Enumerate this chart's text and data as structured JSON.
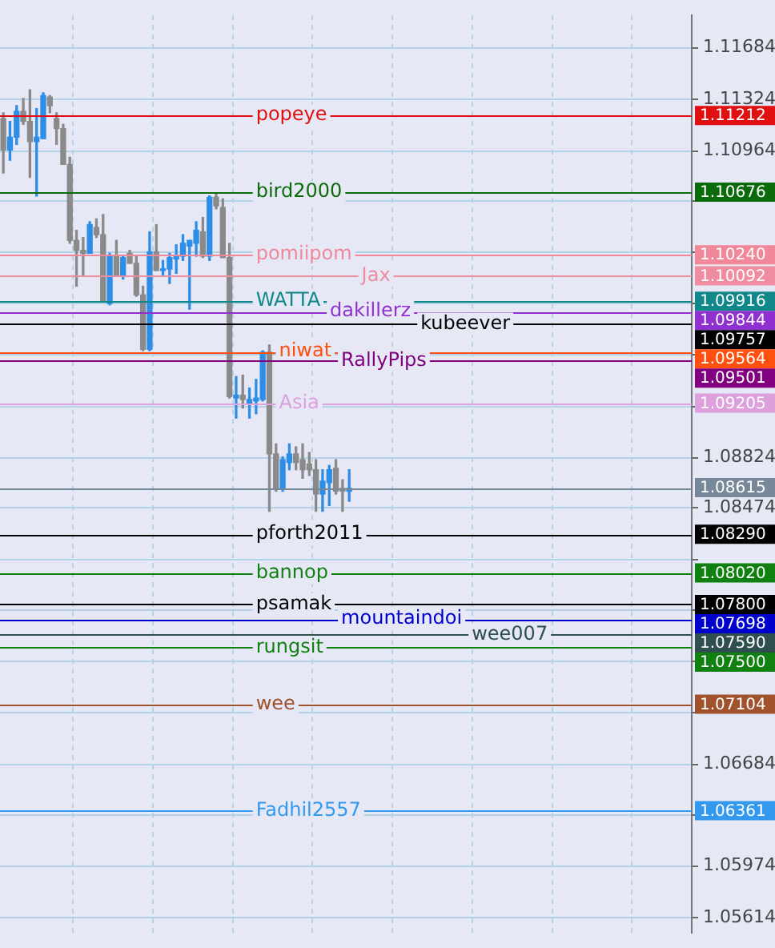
{
  "chart_data": {
    "type": "candlestick",
    "categories": [
      null,
      null,
      null,
      null,
      null,
      null,
      null,
      null,
      null,
      null,
      null,
      null,
      null,
      null,
      null,
      null,
      null,
      null,
      null,
      null,
      null,
      null,
      null,
      null,
      null,
      null,
      null,
      null,
      null,
      null,
      null,
      null,
      null,
      null,
      null,
      null,
      null,
      null,
      null,
      null,
      null,
      null,
      null,
      null,
      null,
      null,
      null,
      null,
      null,
      null,
      null,
      null,
      null,
      null,
      null,
      null,
      null,
      null,
      null,
      null,
      null,
      null,
      null,
      null,
      null,
      null,
      null,
      null,
      null,
      null,
      null,
      null,
      null,
      null,
      null,
      null,
      null,
      null,
      null,
      null,
      null,
      null,
      null,
      null,
      null,
      null,
      null,
      null,
      null,
      null,
      null,
      null,
      null,
      null,
      null,
      null,
      null,
      null,
      null,
      null,
      null,
      null,
      null,
      null
    ],
    "ohlc": [
      [
        1.1119,
        1.1123,
        1.1081,
        1.1097
      ],
      [
        1.1097,
        1.1117,
        1.109,
        1.1106
      ],
      [
        1.1106,
        1.1128,
        1.1101,
        1.1124
      ],
      [
        1.1124,
        1.1133,
        1.1115,
        1.1117
      ],
      [
        1.1117,
        1.1139,
        1.1078,
        1.1103
      ],
      [
        1.1103,
        1.1126,
        1.1065,
        1.1106
      ],
      [
        1.1105,
        1.1137,
        1.1105,
        1.1135
      ],
      [
        1.1134,
        1.1135,
        1.1123,
        1.1128
      ],
      [
        1.1119,
        1.1123,
        1.1101,
        1.1112
      ],
      [
        1.1112,
        1.1115,
        1.1087,
        1.1087
      ],
      [
        1.1087,
        1.1092,
        1.1032,
        1.1034
      ],
      [
        1.1034,
        1.1041,
        1.1002,
        1.1027
      ],
      [
        1.1027,
        1.1036,
        1.1009,
        1.1025
      ],
      [
        1.1025,
        1.1047,
        1.1025,
        1.1045
      ],
      [
        1.1043,
        1.1049,
        1.1036,
        1.1038
      ],
      [
        1.1038,
        1.1052,
        1.0991,
        1.0992
      ],
      [
        1.099,
        1.1025,
        1.0989,
        1.1023
      ],
      [
        1.1023,
        1.1034,
        1.1009,
        1.1009
      ],
      [
        1.1009,
        1.1023,
        1.1007,
        1.1022
      ],
      [
        1.1025,
        1.1027,
        1.1018,
        1.1018
      ],
      [
        1.1018,
        1.1023,
        1.0995,
        1.0996
      ],
      [
        1.0996,
        1.1002,
        1.0957,
        1.0958
      ],
      [
        1.0958,
        1.104,
        1.0957,
        1.1026
      ],
      [
        1.1026,
        1.1045,
        1.1013,
        1.1013
      ],
      [
        1.1013,
        1.102,
        1.1009,
        1.1014
      ],
      [
        1.1014,
        1.1025,
        1.1004,
        1.1022
      ],
      [
        1.1021,
        1.1031,
        1.1011,
        1.1023
      ],
      [
        1.1023,
        1.1038,
        1.102,
        1.1032
      ],
      [
        1.103,
        1.1034,
        1.0986,
        1.1034
      ],
      [
        1.1032,
        1.1047,
        1.1023,
        1.1041
      ],
      [
        1.104,
        1.105,
        1.1022,
        1.1023
      ],
      [
        1.1023,
        1.1065,
        1.102,
        1.1064
      ],
      [
        1.1064,
        1.1067,
        1.1056,
        1.1058
      ],
      [
        1.1057,
        1.1063,
        1.1022,
        1.1022
      ],
      [
        1.1022,
        1.1032,
        1.0924,
        1.0925
      ],
      [
        1.0924,
        1.0939,
        1.091,
        1.0926
      ],
      [
        1.0926,
        1.094,
        1.0917,
        1.0923
      ],
      [
        1.092,
        1.0931,
        1.091,
        1.0923
      ],
      [
        1.0922,
        1.0937,
        1.0913,
        1.0924
      ],
      [
        1.0923,
        1.0957,
        1.0922,
        1.0956
      ],
      [
        1.0956,
        1.0961,
        1.0845,
        1.0885
      ],
      [
        1.0885,
        1.0892,
        1.0859,
        1.0861
      ],
      [
        1.0861,
        1.0883,
        1.0859,
        1.0881
      ],
      [
        1.0879,
        1.0892,
        1.0874,
        1.0885
      ],
      [
        1.0885,
        1.089,
        1.0874,
        1.0879
      ],
      [
        1.0881,
        1.0892,
        1.0868,
        1.0874
      ],
      [
        1.0878,
        1.0886,
        1.087,
        1.0874
      ],
      [
        1.0874,
        1.0881,
        1.0845,
        1.0857
      ],
      [
        1.0857,
        1.0874,
        1.0845,
        1.0866
      ],
      [
        1.0865,
        1.0877,
        1.0849,
        1.0874
      ],
      [
        1.0875,
        1.0881,
        1.0857,
        1.0859
      ],
      [
        1.0861,
        1.0867,
        1.0845,
        1.0859
      ],
      [
        1.0859,
        1.0874,
        1.0852,
        1.0861
      ],
      null,
      null,
      null,
      null,
      null,
      null,
      null,
      null,
      null,
      null,
      null,
      null,
      null,
      null,
      null,
      null,
      null,
      null,
      null,
      null,
      null,
      null,
      null,
      null,
      null,
      null,
      null,
      null,
      null,
      null,
      null,
      null,
      null,
      null,
      null,
      null,
      null,
      null,
      null,
      null,
      null,
      null,
      null,
      null,
      null,
      null,
      null,
      null,
      null,
      null,
      null
    ],
    "colors": [
      "#8a8a8a",
      "#2e8de6",
      "#2e8de6",
      "#8a8a8a",
      "#8a8a8a",
      "#2e8de6",
      "#2e8de6",
      "#8a8a8a",
      "#8a8a8a",
      "#8a8a8a",
      "#8a8a8a",
      "#8a8a8a",
      "#8a8a8a",
      "#2e8de6",
      "#8a8a8a",
      "#8a8a8a",
      "#2e8de6",
      "#8a8a8a",
      "#2e8de6",
      "#8a8a8a",
      "#8a8a8a",
      "#8a8a8a",
      "#2e8de6",
      "#8a8a8a",
      "#2e8de6",
      "#2e8de6",
      "#2e8de6",
      "#2e8de6",
      "#2e8de6",
      "#2e8de6",
      "#8a8a8a",
      "#2e8de6",
      "#8a8a8a",
      "#8a8a8a",
      "#8a8a8a",
      "#2e8de6",
      "#8a8a8a",
      "#2e8de6",
      "#2e8de6",
      "#2e8de6",
      "#8a8a8a",
      "#8a8a8a",
      "#2e8de6",
      "#2e8de6",
      "#8a8a8a",
      "#8a8a8a",
      "#8a8a8a",
      "#8a8a8a",
      "#2e8de6",
      "#2e8de6",
      "#8a8a8a",
      "#8a8a8a",
      "#2e8de6",
      null,
      null,
      null,
      null,
      null,
      null,
      null,
      null,
      null,
      null,
      null,
      null,
      null,
      null,
      null,
      null,
      null,
      null,
      null,
      null,
      null,
      null,
      null,
      null,
      null,
      null,
      null,
      null,
      null,
      null,
      null,
      null,
      null,
      null,
      null,
      null,
      null,
      null,
      null,
      null,
      null,
      null,
      null,
      null,
      null,
      null,
      null,
      null,
      null,
      null,
      null
    ],
    "ylim": [
      1.0551,
      1.1191
    ],
    "yticks": [
      1.11684,
      1.11324,
      1.10964,
      {
        "value": 1.10614,
        "label": null
      },
      {
        "value": 1.1026,
        "label": null
      },
      {
        "value": 1.099,
        "label": null
      },
      {
        "value": 1.0954,
        "label": null
      },
      {
        "value": 1.0918,
        "label": null
      },
      1.08824,
      1.08474,
      {
        "value": 1.08114,
        "label": null
      },
      {
        "value": 1.0776,
        "label": null
      },
      {
        "value": 1.07404,
        "label": null
      },
      {
        "value": 1.07044,
        "label": null
      },
      1.06684,
      {
        "value": 1.0633,
        "label": null
      },
      1.05974,
      1.05614
    ],
    "tick_labels": "y",
    "grid": true,
    "ref_lines": [
      {
        "axis": "y",
        "value": 1.11212,
        "label": "popeye",
        "color": "#e01010"
      },
      {
        "axis": "y",
        "value": 1.10676,
        "label": "bird2000",
        "color": "#0a6b0a"
      },
      {
        "axis": "y",
        "value": 1.1024,
        "label": "pomiipom",
        "color": "#f0889a"
      },
      {
        "axis": "y",
        "value": 1.10092,
        "label": "Jax",
        "color": "#f08ca0"
      },
      {
        "axis": "y",
        "value": 1.09916,
        "label": "WATTA",
        "color": "#10888a"
      },
      {
        "axis": "y",
        "value": 1.09844,
        "label": "dakillerz",
        "color": "#9030d0"
      },
      {
        "axis": "y",
        "value": 1.09757,
        "label": "kubeever",
        "color": "#000000"
      },
      {
        "axis": "y",
        "value": 1.09564,
        "label": "niwat",
        "color": "#ff5010"
      },
      {
        "axis": "y",
        "value": 1.09501,
        "label": "RallyPips",
        "color": "#800080"
      },
      {
        "axis": "y",
        "value": 1.09205,
        "label": "Asia",
        "color": "#dda0dd"
      },
      {
        "axis": "y",
        "value": 1.08615,
        "color": "#778899"
      },
      {
        "axis": "y",
        "value": 1.0829,
        "label": "pforth2011",
        "color": "#000000"
      },
      {
        "axis": "y",
        "value": 1.0802,
        "label": "bannop",
        "color": "#108010"
      },
      {
        "axis": "y",
        "value": 1.078,
        "label": "psamak",
        "color": "#000000"
      },
      {
        "axis": "y",
        "value": 1.07698,
        "label": "mountaindoi",
        "color": "#0000cc"
      },
      {
        "axis": "y",
        "value": 1.0759,
        "label": "wee007",
        "color": "#2f4f4f"
      },
      {
        "axis": "y",
        "value": 1.075,
        "label": "rungsit",
        "color": "#108010"
      },
      {
        "axis": "y",
        "value": 1.07104,
        "label": "wee",
        "color": "#a0522d"
      },
      {
        "axis": "y",
        "value": 1.06361,
        "label": "Fadhil2557",
        "color": "#3399ee"
      }
    ],
    "annotations": [
      "1.11212",
      "1.10676",
      "1.10240",
      "1.10092",
      "1.09916",
      "1.09844",
      "1.09757",
      "1.09564",
      "1.09501",
      "1.09205",
      "1.08615",
      "1.08290",
      "1.08020",
      "1.07800",
      "1.07698",
      "1.07590",
      "1.07500",
      "1.07104",
      "1.06361"
    ],
    "legend": false
  }
}
